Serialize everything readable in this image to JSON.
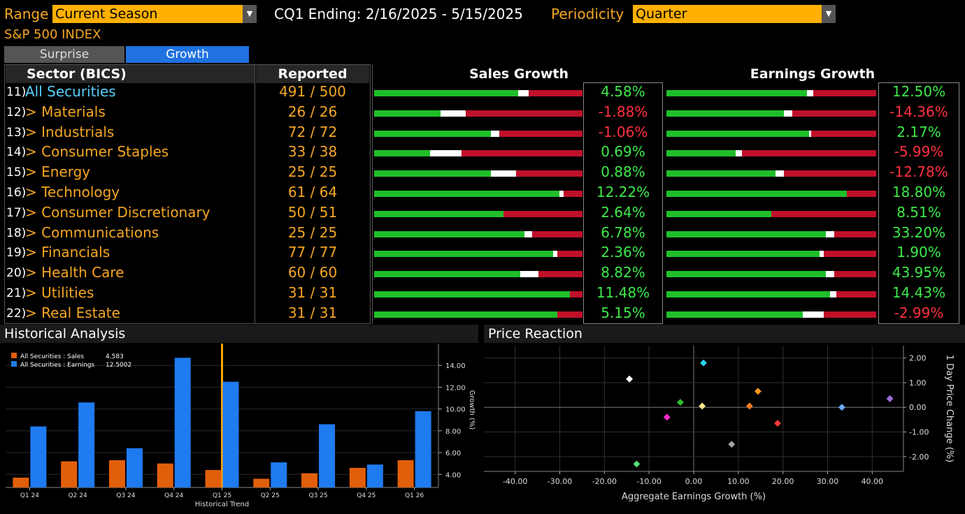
{
  "topbar": {
    "range_label": "Range",
    "range_value": "Current Season",
    "cq_text": "CQ1 Ending: 2/16/2025 - 5/15/2025",
    "periodicity_label": "Periodicity",
    "periodicity_value": "Quarter"
  },
  "index_title": "S&P 500 INDEX",
  "tabs": {
    "surprise": "Surprise",
    "growth": "Growth"
  },
  "table": {
    "headers": {
      "sector": "Sector (BICS)",
      "reported": "Reported",
      "sales": "Sales Growth",
      "earnings": "Earnings Growth"
    },
    "rows": [
      {
        "num": "11)",
        "sector": "All Securities",
        "reported": "491",
        "total": "500",
        "sales": "4.58%",
        "earnings": "12.50%"
      },
      {
        "num": "12)",
        "sector": "> Materials",
        "reported": "26",
        "total": "26",
        "sales": "-1.88%",
        "earnings": "-14.36%"
      },
      {
        "num": "13)",
        "sector": "> Industrials",
        "reported": "72",
        "total": "72",
        "sales": "-1.06%",
        "earnings": "2.17%"
      },
      {
        "num": "14)",
        "sector": "> Consumer Staples",
        "reported": "33",
        "total": "38",
        "sales": "0.69%",
        "earnings": "-5.99%"
      },
      {
        "num": "15)",
        "sector": "> Energy",
        "reported": "25",
        "total": "25",
        "sales": "0.88%",
        "earnings": "-12.78%"
      },
      {
        "num": "16)",
        "sector": "> Technology",
        "reported": "61",
        "total": "64",
        "sales": "12.22%",
        "earnings": "18.80%"
      },
      {
        "num": "17)",
        "sector": "> Consumer Discretionary",
        "reported": "50",
        "total": "51",
        "sales": "2.64%",
        "earnings": "8.51%"
      },
      {
        "num": "18)",
        "sector": "> Communications",
        "reported": "25",
        "total": "25",
        "sales": "6.78%",
        "earnings": "33.20%"
      },
      {
        "num": "19)",
        "sector": "> Financials",
        "reported": "77",
        "total": "77",
        "sales": "2.36%",
        "earnings": "1.90%"
      },
      {
        "num": "20)",
        "sector": "> Health Care",
        "reported": "60",
        "total": "60",
        "sales": "8.82%",
        "earnings": "43.95%"
      },
      {
        "num": "21)",
        "sector": "> Utilities",
        "reported": "31",
        "total": "31",
        "sales": "11.48%",
        "earnings": "14.43%"
      },
      {
        "num": "22)",
        "sector": "> Real Estate",
        "reported": "31",
        "total": "31",
        "sales": "5.15%",
        "earnings": "-2.99%"
      }
    ],
    "sales_bar_fractions": [
      {
        "green": 0.69,
        "white": 0.05
      },
      {
        "green": 0.32,
        "white": 0.12
      },
      {
        "green": 0.56,
        "white": 0.04
      },
      {
        "green": 0.27,
        "white": 0.15
      },
      {
        "green": 0.56,
        "white": 0.12
      },
      {
        "green": 0.89,
        "white": 0.02
      },
      {
        "green": 0.62,
        "white": 0.0
      },
      {
        "green": 0.72,
        "white": 0.04
      },
      {
        "green": 0.86,
        "white": 0.02
      },
      {
        "green": 0.7,
        "white": 0.09
      },
      {
        "green": 0.94,
        "white": 0.0
      },
      {
        "green": 0.88,
        "white": 0.0
      }
    ],
    "earnings_bar_fractions": [
      {
        "green": 0.67,
        "white": 0.03
      },
      {
        "green": 0.56,
        "white": 0.04
      },
      {
        "green": 0.68,
        "white": 0.01
      },
      {
        "green": 0.33,
        "white": 0.03
      },
      {
        "green": 0.52,
        "white": 0.04
      },
      {
        "green": 0.86,
        "white": 0.0
      },
      {
        "green": 0.5,
        "white": 0.0
      },
      {
        "green": 0.76,
        "white": 0.04
      },
      {
        "green": 0.73,
        "white": 0.02
      },
      {
        "green": 0.76,
        "white": 0.04
      },
      {
        "green": 0.78,
        "white": 0.03
      },
      {
        "green": 0.65,
        "white": 0.1
      }
    ]
  },
  "historical": {
    "title": "Historical Analysis",
    "legend_sales": "All Securities : Sales",
    "legend_sales_value": "4.583",
    "legend_earnings": "All Securities : Earnings",
    "legend_earnings_value": "12.5002",
    "axis_title": "Growth (%)",
    "x_title": "Historical Trend",
    "colors": {
      "sales": "#e15f0a",
      "earnings": "#1e7bf0",
      "marker": "#ffa500"
    }
  },
  "price": {
    "title": "Price Reaction",
    "x_title": "Aggregate Earnings Growth (%)",
    "y_title": "1 Day Price Change (%)"
  },
  "chart_data": [
    {
      "type": "bar",
      "title": "Historical Analysis",
      "xlabel": "Historical Trend",
      "ylabel": "Growth (%)",
      "categories": [
        "Q1 24",
        "Q2 24",
        "Q3 24",
        "Q4 24",
        "Q1 25",
        "Q2 25",
        "Q3 25",
        "Q4 25",
        "Q1 26"
      ],
      "series": [
        {
          "name": "All Securities : Sales",
          "values": [
            3.7,
            5.2,
            5.3,
            5.0,
            4.4,
            3.6,
            4.1,
            4.6,
            5.3
          ]
        },
        {
          "name": "All Securities : Earnings",
          "values": [
            8.4,
            10.6,
            6.4,
            14.7,
            12.5,
            5.1,
            8.6,
            4.9,
            9.8
          ]
        }
      ],
      "ylim": [
        2.8,
        16.0
      ],
      "yticks": [
        "4.00",
        "6.00",
        "8.00",
        "10.00",
        "12.00",
        "14.00"
      ],
      "current_marker": "Q1 25",
      "legend": "top-left"
    },
    {
      "type": "scatter",
      "title": "Price Reaction",
      "xlabel": "Aggregate Earnings Growth (%)",
      "ylabel": "1 Day Price Change (%)",
      "xlim": [
        -47,
        47
      ],
      "ylim": [
        -2.6,
        2.5
      ],
      "xticks": [
        "-40.00",
        "-30.00",
        "-20.00",
        "-10.00",
        "0.00",
        "10.00",
        "20.00",
        "30.00",
        "40.00"
      ],
      "yticks": [
        "2.00",
        "1.00",
        "0.00",
        "-1.00",
        "-2.00"
      ],
      "points": [
        {
          "x": 2.2,
          "y": 1.8,
          "color": "#2ad2ee"
        },
        {
          "x": -14.4,
          "y": 1.15,
          "color": "#ffffff"
        },
        {
          "x": 14.4,
          "y": 0.65,
          "color": "#ff9a1e"
        },
        {
          "x": -2.99,
          "y": 0.2,
          "color": "#2ec22a"
        },
        {
          "x": 1.9,
          "y": 0.05,
          "color": "#ffe690"
        },
        {
          "x": 12.5,
          "y": 0.05,
          "color": "#f57c1f"
        },
        {
          "x": 33.2,
          "y": 0.0,
          "color": "#6ea8ff"
        },
        {
          "x": 43.95,
          "y": 0.35,
          "color": "#a070e0"
        },
        {
          "x": -5.99,
          "y": -0.4,
          "color": "#ff2ad0"
        },
        {
          "x": 18.8,
          "y": -0.65,
          "color": "#ff3a3a"
        },
        {
          "x": 8.51,
          "y": -1.5,
          "color": "#a6a6a6"
        },
        {
          "x": -12.78,
          "y": -2.3,
          "color": "#50e07a"
        }
      ]
    }
  ]
}
